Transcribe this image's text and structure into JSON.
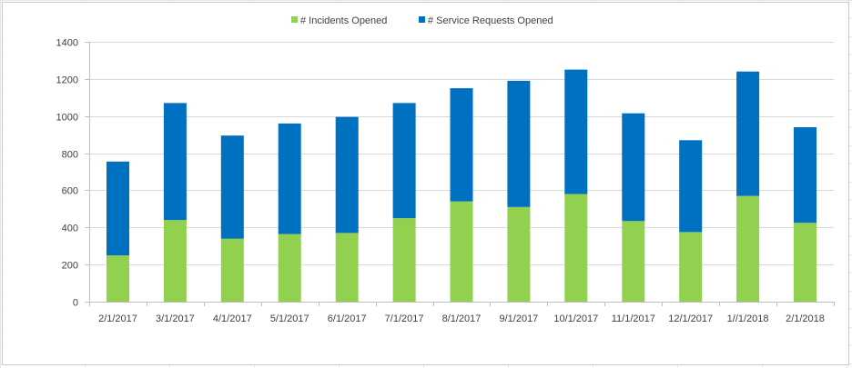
{
  "chart_data": {
    "type": "bar",
    "stacked": true,
    "categories": [
      "2/1/2017",
      "3/1/2017",
      "4/1/2017",
      "5/1/2017",
      "6/1/2017",
      "7/1/2017",
      "8/1/2017",
      "9/1/2017",
      "10/1/2017",
      "11/1/2017",
      "12/1/2017",
      "1//1/2018",
      "2/1/2018"
    ],
    "series": [
      {
        "name": "# Incidents Opened",
        "color": "#92d050",
        "values": [
          250,
          440,
          340,
          365,
          370,
          450,
          540,
          510,
          580,
          435,
          375,
          570,
          425
        ]
      },
      {
        "name": "# Service Requests Opened",
        "color": "#0070c0",
        "values": [
          505,
          630,
          555,
          595,
          625,
          620,
          610,
          680,
          670,
          580,
          495,
          670,
          515
        ]
      }
    ],
    "title": "",
    "xlabel": "",
    "ylabel": "",
    "ylim": [
      0,
      1400
    ],
    "yticks": [
      0,
      200,
      400,
      600,
      800,
      1000,
      1200,
      1400
    ],
    "grid": true,
    "legend": "top"
  }
}
